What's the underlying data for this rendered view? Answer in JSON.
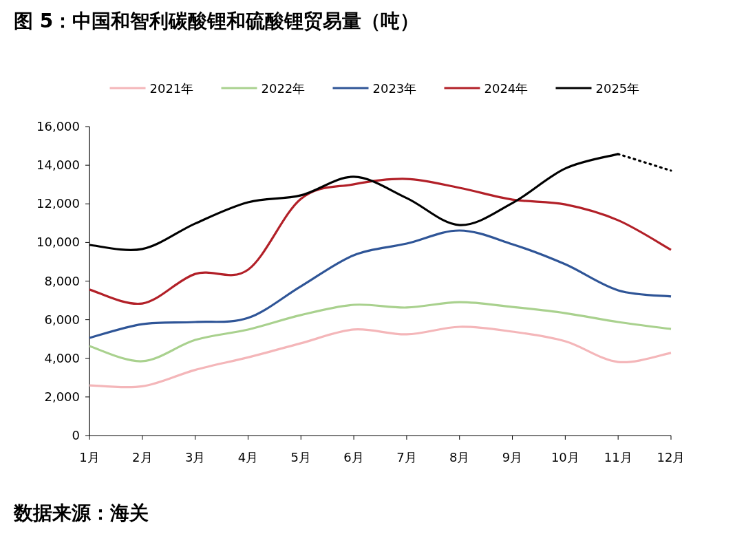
{
  "chart_data": {
    "type": "line",
    "title": "图 5：中国和智利碳酸锂和硫酸锂贸易量（吨）",
    "annotations": [
      "数据来源：海关"
    ],
    "categories": [
      "1月",
      "2月",
      "3月",
      "4月",
      "5月",
      "6月",
      "7月",
      "8月",
      "9月",
      "10月",
      "11月",
      "12月"
    ],
    "ylim": [
      0,
      16000
    ],
    "yticks": [
      0,
      {
        "value": 2000,
        "label": "2,000"
      },
      {
        "value": 4000,
        "label": "4,000"
      },
      {
        "value": 6000,
        "label": "6,000"
      },
      {
        "value": 8000,
        "label": "8,000"
      },
      {
        "value": 10000,
        "label": "10,000"
      },
      {
        "value": 12000,
        "label": "12,000"
      },
      {
        "value": 14000,
        "label": "14,000"
      },
      {
        "value": 16000,
        "label": "16,000"
      }
    ],
    "grid": false,
    "legend": "top",
    "marker": "none",
    "line_style": "solid",
    "series": [
      {
        "name": "2021年",
        "color": "#f4b6b9",
        "values": [
          2600,
          2550,
          3400,
          4050,
          4780,
          5490,
          5240,
          5630,
          5380,
          4880,
          3810,
          4280
        ]
      },
      {
        "name": "2022年",
        "color": "#a9d18e",
        "values": [
          4630,
          3850,
          4950,
          5490,
          6240,
          6770,
          6630,
          6910,
          6660,
          6340,
          5880,
          5520
        ]
      },
      {
        "name": "2023年",
        "color": "#2f5597",
        "values": [
          5060,
          5770,
          5880,
          6090,
          7730,
          9340,
          9940,
          10620,
          9910,
          8870,
          7520,
          7200
        ]
      },
      {
        "name": "2024年",
        "color": "#b22028",
        "values": [
          7560,
          6840,
          8370,
          8590,
          12260,
          13010,
          13290,
          12830,
          12220,
          11970,
          11150,
          9620
        ]
      },
      {
        "name": "2025年",
        "color": "#000000",
        "values": [
          9870,
          9660,
          10980,
          12080,
          12440,
          13400,
          12300,
          10900,
          12040,
          13830,
          14580,
          null
        ]
      },
      {
        "color": "#000000",
        "line_style": "dotted",
        "values": [
          null,
          null,
          null,
          null,
          null,
          null,
          null,
          null,
          null,
          null,
          14580,
          13720
        ]
      }
    ]
  }
}
